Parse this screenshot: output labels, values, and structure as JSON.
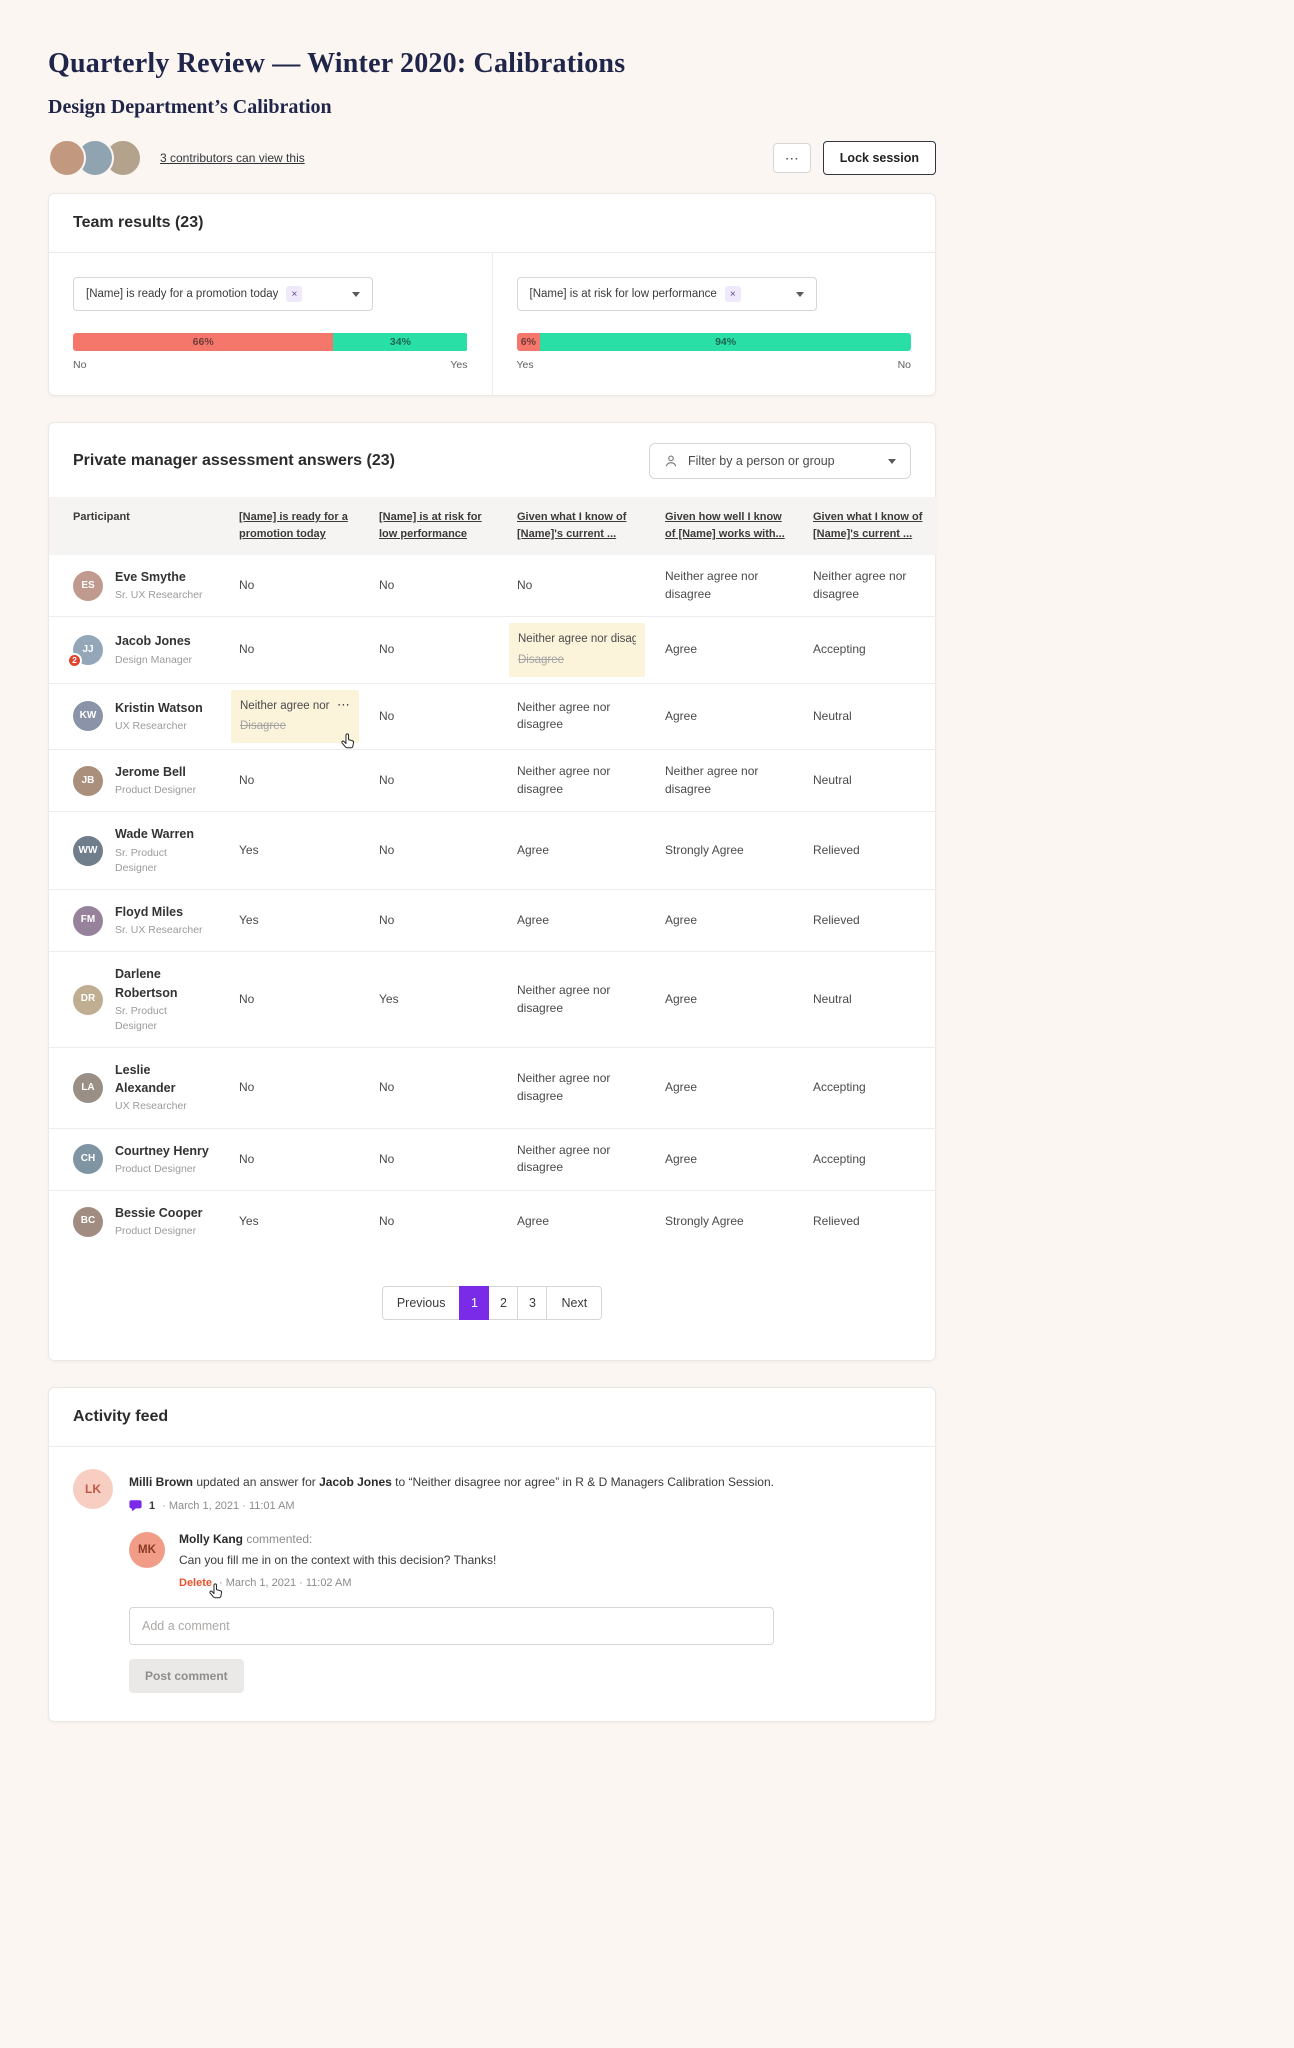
{
  "header": {
    "title": "Quarterly Review — Winter 2020: Calibrations",
    "subtitle": "Design Department’s Calibration",
    "contributors_link": "3 contributors can view this",
    "avatar_colors": [
      "#C2997F",
      "#8FA3B0",
      "#B3A38C"
    ],
    "lock_button": "Lock session"
  },
  "icons": {
    "ellipsis": "⋯",
    "close": "×",
    "kebab": "⋯"
  },
  "colors": {
    "accent_purple": "#7A2BE8",
    "bar_red": "#F5776C",
    "bar_green": "#29DFA6",
    "highlight_yellow": "#FCF3DB",
    "delete_red": "#E4532F",
    "badge_red": "#E0442D",
    "ink_navy": "#20254A"
  },
  "team_results": {
    "title": "Team results (23)",
    "charts": [
      {
        "question": "[Name] is ready for a promotion today",
        "segments": [
          {
            "label": "66%",
            "value": 66,
            "color_key": "bar_red"
          },
          {
            "label": "34%",
            "value": 34,
            "color_key": "bar_green"
          }
        ],
        "axis_left": "No",
        "axis_right": "Yes"
      },
      {
        "question": "[Name] is at risk for low performance",
        "segments": [
          {
            "label": "6%",
            "value": 6,
            "color_key": "bar_red"
          },
          {
            "label": "94%",
            "value": 94,
            "color_key": "bar_green"
          }
        ],
        "axis_left": "Yes",
        "axis_right": "No"
      }
    ]
  },
  "assessment": {
    "title": "Private manager assessment answers (23)",
    "filter_label": "Filter by a person or group",
    "participant_col": "Participant",
    "question_cols": [
      "[Name] is ready for a promotion today",
      "[Name] is at risk for low performance",
      "Given what I know of [Name]'s current ...",
      "Given how well I know of [Name] works with...",
      "Given what I know of [Name]'s current ..."
    ],
    "rows": [
      {
        "name": "Eve Smythe",
        "role": "Sr. UX Researcher",
        "avatar_color": "#C09A8E",
        "answers": [
          "No",
          "No",
          "No",
          "Neither agree nor disagree",
          "Neither agree nor disagree"
        ]
      },
      {
        "name": "Jacob Jones",
        "role": "Design Manager",
        "avatar_color": "#93A7B8",
        "badge": "2",
        "answers": [
          "No",
          "No",
          {
            "new": "Neither agree nor disagr...",
            "old": "Disagree"
          },
          "Agree",
          "Accepting"
        ]
      },
      {
        "name": "Kristin Watson",
        "role": "UX Researcher",
        "avatar_color": "#8B93A8",
        "answers": [
          {
            "new": "Neither agree nor d...",
            "old": "Disagree",
            "menu": true,
            "cursor": true
          },
          "No",
          "Neither agree nor disagree",
          "Agree",
          "Neutral"
        ]
      },
      {
        "name": "Jerome Bell",
        "role": "Product Designer",
        "avatar_color": "#A98F7C",
        "answers": [
          "No",
          "No",
          "Neither agree nor disagree",
          "Neither agree nor disagree",
          "Neutral"
        ]
      },
      {
        "name": "Wade Warren",
        "role": "Sr. Product Designer",
        "avatar_color": "#6F7E8A",
        "answers": [
          "Yes",
          "No",
          "Agree",
          "Strongly Agree",
          "Relieved"
        ]
      },
      {
        "name": "Floyd Miles",
        "role": "Sr. UX Researcher",
        "avatar_color": "#97829B",
        "answers": [
          "Yes",
          "No",
          "Agree",
          "Agree",
          "Relieved"
        ]
      },
      {
        "name": "Darlene Robertson",
        "role": "Sr. Product Designer",
        "avatar_color": "#C0AE92",
        "answers": [
          "No",
          "Yes",
          "Neither agree nor disagree",
          "Agree",
          "Neutral"
        ]
      },
      {
        "name": "Leslie Alexander",
        "role": "UX Researcher",
        "avatar_color": "#9A8F85",
        "answers": [
          "No",
          "No",
          "Neither agree nor disagree",
          "Agree",
          "Accepting"
        ]
      },
      {
        "name": "Courtney Henry",
        "role": "Product Designer",
        "avatar_color": "#7F95A3",
        "answers": [
          "No",
          "No",
          "Neither agree nor disagree",
          "Agree",
          "Accepting"
        ]
      },
      {
        "name": "Bessie Cooper",
        "role": "Product Designer",
        "avatar_color": "#A08C80",
        "answers": [
          "Yes",
          "No",
          "Agree",
          "Strongly Agree",
          "Relieved"
        ]
      }
    ]
  },
  "pagination": {
    "previous": "Previous",
    "pages": [
      "1",
      "2",
      "3"
    ],
    "active": "1",
    "next": "Next"
  },
  "activity": {
    "title": "Activity feed",
    "item": {
      "avatar_initials": "LK",
      "actor": "Milli Brown",
      "text_before_target": " updated an answer for ",
      "target": "Jacob Jones",
      "text_after_target": " to “Neither disagree nor agree” in R & D Managers Calibration Session.",
      "comments_count": "1",
      "timestamp": "·  March 1, 2021  ·  11:01 AM"
    },
    "comment": {
      "avatar_initials": "MK",
      "author": "Molly Kang",
      "commented_label": "commented:",
      "body": "Can you fill me in on the context with this decision? Thanks!",
      "delete_label": "Delete",
      "timestamp": "·  March 1, 2021  ·  11:02 AM"
    },
    "composer": {
      "placeholder": "Add a comment",
      "post_button": "Post comment"
    }
  }
}
